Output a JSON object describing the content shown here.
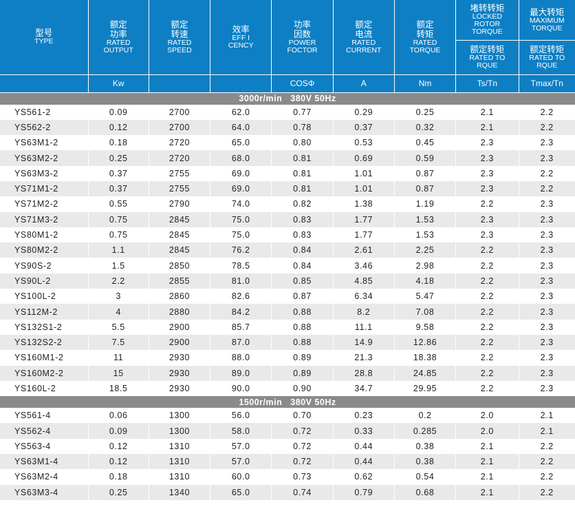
{
  "header": {
    "type": {
      "cn": "型号",
      "en": "TYPE"
    },
    "columns": [
      {
        "cn": "额定<br>功率",
        "en": "RATED<br>OUTPUT",
        "unit": "Kw"
      },
      {
        "cn": "额定<br>转速",
        "en": "RATED<br>SPEED",
        "unit": ""
      },
      {
        "cn": "效率",
        "en": "EFF I<br>CENCY",
        "unit": ""
      },
      {
        "cn": "功率<br>因数",
        "en": "POWER<br>FOCTOR",
        "unit": "COSΦ"
      },
      {
        "cn": "额定<br>电流",
        "en": "RATED<br>CURRENT",
        "unit": "A"
      },
      {
        "cn": "额定<br>转矩",
        "en": "RATED<br>TORQUE",
        "unit": "Nm"
      }
    ],
    "locked": {
      "cn": "堵转转矩",
      "en": "LOCKED<br>ROTOR<br>TORQUE",
      "sub_cn": "额定转矩",
      "sub_en": "RATED TO<br>RQUE",
      "unit": "Ts/Tn"
    },
    "maximum": {
      "cn": "最大转矩",
      "en": "MAXIMUM<br>TORQUE",
      "sub_cn": "额定转矩",
      "sub_en": "RATED TO<br>RQUE",
      "unit": "Tmax/Tn"
    }
  },
  "sections": [
    {
      "speed": "3000r/min",
      "supply": "380V 50Hz",
      "rows": [
        [
          "YS561-2",
          "0.09",
          "2700",
          "62.0",
          "0.77",
          "0.29",
          "0.25",
          "2.1",
          "2.2"
        ],
        [
          "YS562-2",
          "0.12",
          "2700",
          "64.0",
          "0.78",
          "0.37",
          "0.32",
          "2.1",
          "2.2"
        ],
        [
          "YS63M1-2",
          "0.18",
          "2720",
          "65.0",
          "0.80",
          "0.53",
          "0.45",
          "2.3",
          "2.3"
        ],
        [
          "YS63M2-2",
          "0.25",
          "2720",
          "68.0",
          "0.81",
          "0.69",
          "0.59",
          "2.3",
          "2.3"
        ],
        [
          "YS63M3-2",
          "0.37",
          "2755",
          "69.0",
          "0.81",
          "1.01",
          "0.87",
          "2.3",
          "2.2"
        ],
        [
          "YS71M1-2",
          "0.37",
          "2755",
          "69.0",
          "0.81",
          "1.01",
          "0.87",
          "2.3",
          "2.2"
        ],
        [
          "YS71M2-2",
          "0.55",
          "2790",
          "74.0",
          "0.82",
          "1.38",
          "1.19",
          "2.2",
          "2.3"
        ],
        [
          "YS71M3-2",
          "0.75",
          "2845",
          "75.0",
          "0.83",
          "1.77",
          "1.53",
          "2.3",
          "2.3"
        ],
        [
          "YS80M1-2",
          "0.75",
          "2845",
          "75.0",
          "0.83",
          "1.77",
          "1.53",
          "2.3",
          "2.3"
        ],
        [
          "YS80M2-2",
          "1.1",
          "2845",
          "76.2",
          "0.84",
          "2.61",
          "2.25",
          "2.2",
          "2.3"
        ],
        [
          "YS90S-2",
          "1.5",
          "2850",
          "78.5",
          "0.84",
          "3.46",
          "2.98",
          "2.2",
          "2.3"
        ],
        [
          "YS90L-2",
          "2.2",
          "2855",
          "81.0",
          "0.85",
          "4.85",
          "4.18",
          "2.2",
          "2.3"
        ],
        [
          "YS100L-2",
          "3",
          "2860",
          "82.6",
          "0.87",
          "6.34",
          "5.47",
          "2.2",
          "2.3"
        ],
        [
          "YS112M-2",
          "4",
          "2880",
          "84.2",
          "0.88",
          "8.2",
          "7.08",
          "2.2",
          "2.3"
        ],
        [
          "YS132S1-2",
          "5.5",
          "2900",
          "85.7",
          "0.88",
          "11.1",
          "9.58",
          "2.2",
          "2.3"
        ],
        [
          "YS132S2-2",
          "7.5",
          "2900",
          "87.0",
          "0.88",
          "14.9",
          "12.86",
          "2.2",
          "2.3"
        ],
        [
          "YS160M1-2",
          "11",
          "2930",
          "88.0",
          "0.89",
          "21.3",
          "18.38",
          "2.2",
          "2.3"
        ],
        [
          "YS160M2-2",
          "15",
          "2930",
          "89.0",
          "0.89",
          "28.8",
          "24.85",
          "2.2",
          "2.3"
        ],
        [
          "YS160L-2",
          "18.5",
          "2930",
          "90.0",
          "0.90",
          "34.7",
          "29.95",
          "2.2",
          "2.3"
        ]
      ]
    },
    {
      "speed": "1500r/min",
      "supply": "380V 50Hz",
      "rows": [
        [
          "YS561-4",
          "0.06",
          "1300",
          "56.0",
          "0.70",
          "0.23",
          "0.2",
          "2.0",
          "2.1"
        ],
        [
          "YS562-4",
          "0.09",
          "1300",
          "58.0",
          "0.72",
          "0.33",
          "0.285",
          "2.0",
          "2.1"
        ],
        [
          "YS563-4",
          "0.12",
          "1310",
          "57.0",
          "0.72",
          "0.44",
          "0.38",
          "2.1",
          "2.2"
        ],
        [
          "YS63M1-4",
          "0.12",
          "1310",
          "57.0",
          "0.72",
          "0.44",
          "0.38",
          "2.1",
          "2.2"
        ],
        [
          "YS63M2-4",
          "0.18",
          "1310",
          "60.0",
          "0.73",
          "0.62",
          "0.54",
          "2.1",
          "2.2"
        ],
        [
          "YS63M3-4",
          "0.25",
          "1340",
          "65.0",
          "0.74",
          "0.79",
          "0.68",
          "2.1",
          "2.2"
        ]
      ]
    }
  ]
}
